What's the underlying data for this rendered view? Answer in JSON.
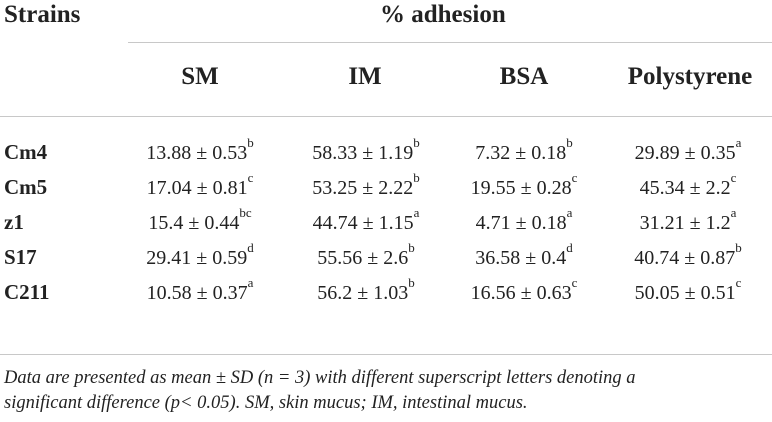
{
  "table": {
    "stub_header": "Strains",
    "group_header": "% adhesion",
    "columns": [
      "SM",
      "IM",
      "BSA",
      "Polystyrene"
    ],
    "rows": [
      {
        "strain": "Cm4",
        "cells": [
          {
            "value": "13.88 ± 0.53",
            "sup": "b"
          },
          {
            "value": "58.33 ± 1.19",
            "sup": "b"
          },
          {
            "value": "7.32 ± 0.18",
            "sup": "b"
          },
          {
            "value": "29.89 ± 0.35",
            "sup": "a"
          }
        ]
      },
      {
        "strain": "Cm5",
        "cells": [
          {
            "value": "17.04 ± 0.81",
            "sup": "c"
          },
          {
            "value": "53.25 ± 2.22",
            "sup": "b"
          },
          {
            "value": "19.55 ± 0.28",
            "sup": "c"
          },
          {
            "value": "45.34 ± 2.2",
            "sup": "c"
          }
        ]
      },
      {
        "strain": "z1",
        "cells": [
          {
            "value": "15.4 ± 0.44",
            "sup": "bc"
          },
          {
            "value": "44.74 ± 1.15",
            "sup": "a"
          },
          {
            "value": "4.71 ± 0.18",
            "sup": "a"
          },
          {
            "value": "31.21 ± 1.2",
            "sup": "a"
          }
        ]
      },
      {
        "strain": "S17",
        "cells": [
          {
            "value": "29.41 ± 0.59",
            "sup": "d"
          },
          {
            "value": "55.56 ± 2.6",
            "sup": "b"
          },
          {
            "value": "36.58 ± 0.4",
            "sup": "d"
          },
          {
            "value": "40.74 ± 0.87",
            "sup": "b"
          }
        ]
      },
      {
        "strain": "C211",
        "cells": [
          {
            "value": "10.58 ± 0.37",
            "sup": "a"
          },
          {
            "value": "56.2 ± 1.03",
            "sup": "b"
          },
          {
            "value": "16.56 ± 0.63",
            "sup": "c"
          },
          {
            "value": "50.05 ± 0.51",
            "sup": "c"
          }
        ]
      }
    ],
    "footnote_line1": "Data are presented as mean ± SD (n = 3) with different superscript letters denoting a",
    "footnote_line2": "significant difference (p< 0.05). SM, skin mucus; IM, intestinal mucus."
  }
}
